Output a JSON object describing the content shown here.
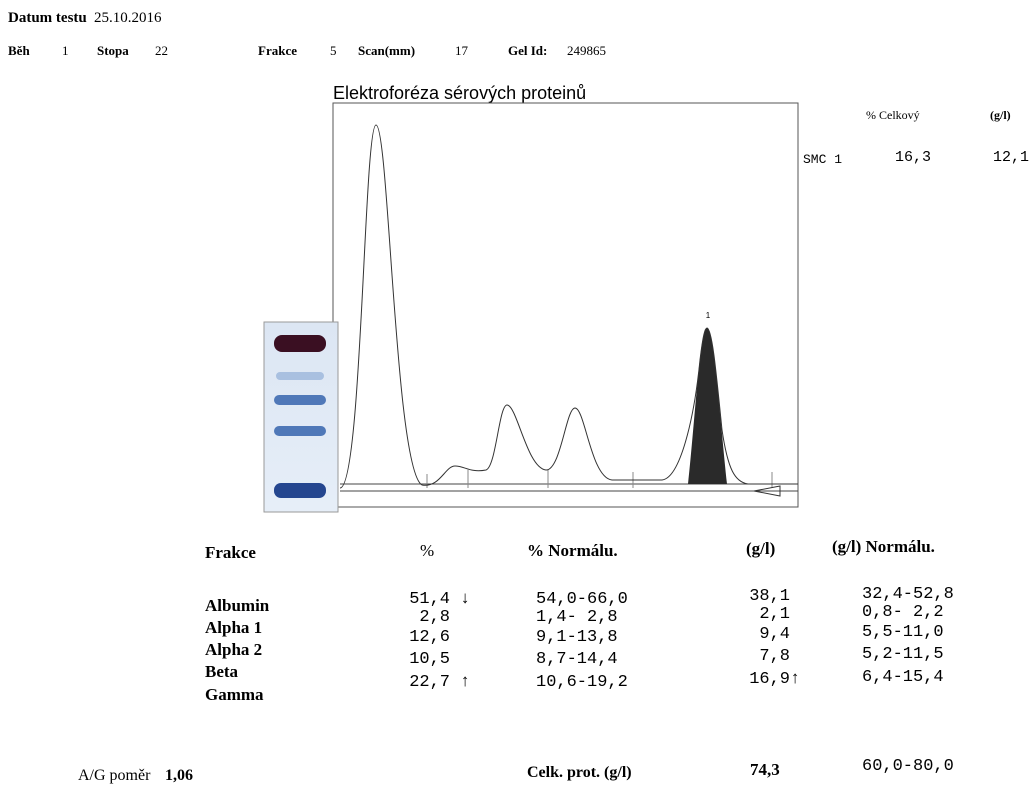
{
  "header": {
    "date_label": "Datum testu",
    "date": "25.10.2016",
    "run_label": "Běh",
    "run": "1",
    "track_label": "Stopa",
    "track": "22",
    "fractions_label": "Frakce",
    "fractions": "5",
    "scan_label": "Scan(mm)",
    "scan": "17",
    "gel_label": "Gel Id:",
    "gel": "249865"
  },
  "graph": {
    "title": "Elektroforéza sérových proteinů",
    "peak_marker": "1"
  },
  "smc": {
    "header_percent": "% Celkový",
    "header_gl": "(g/l)",
    "label": "SMC 1",
    "percent": "16,3",
    "gl": "12,1"
  },
  "table": {
    "headers": [
      "Frakce",
      "%",
      "% Normálu.",
      "(g/l)",
      "(g/l) Normálu."
    ],
    "rows": [
      {
        "name": "Albumin",
        "percent": "51,4",
        "percent_flag": "↓",
        "percent_normal": "54,0-66,0",
        "gl": "38,1",
        "gl_flag": null,
        "gl_normal": "32,4-52,8"
      },
      {
        "name": "Alpha 1",
        "percent": "2,8",
        "percent_flag": null,
        "percent_normal": "1,4- 2,8",
        "gl": "2,1",
        "gl_flag": null,
        "gl_normal": "0,8- 2,2"
      },
      {
        "name": "Alpha 2",
        "percent": "12,6",
        "percent_flag": null,
        "percent_normal": "9,1-13,8",
        "gl": "9,4",
        "gl_flag": null,
        "gl_normal": "5,5-11,0"
      },
      {
        "name": "Beta",
        "percent": "10,5",
        "percent_flag": null,
        "percent_normal": "8,7-14,4",
        "gl": "7,8",
        "gl_flag": null,
        "gl_normal": "5,2-11,5"
      },
      {
        "name": "Gamma",
        "percent": "22,7",
        "percent_flag": "↑",
        "percent_normal": "10,6-19,2",
        "gl": "16,9",
        "gl_flag": "↑",
        "gl_normal": "6,4-15,4"
      }
    ]
  },
  "footer": {
    "ag_label": "A/G poměr",
    "ag": "1,06",
    "total_label": "Celk. prot. (g/l)",
    "total": "74,3",
    "total_normal": "60,0-80,0"
  }
}
